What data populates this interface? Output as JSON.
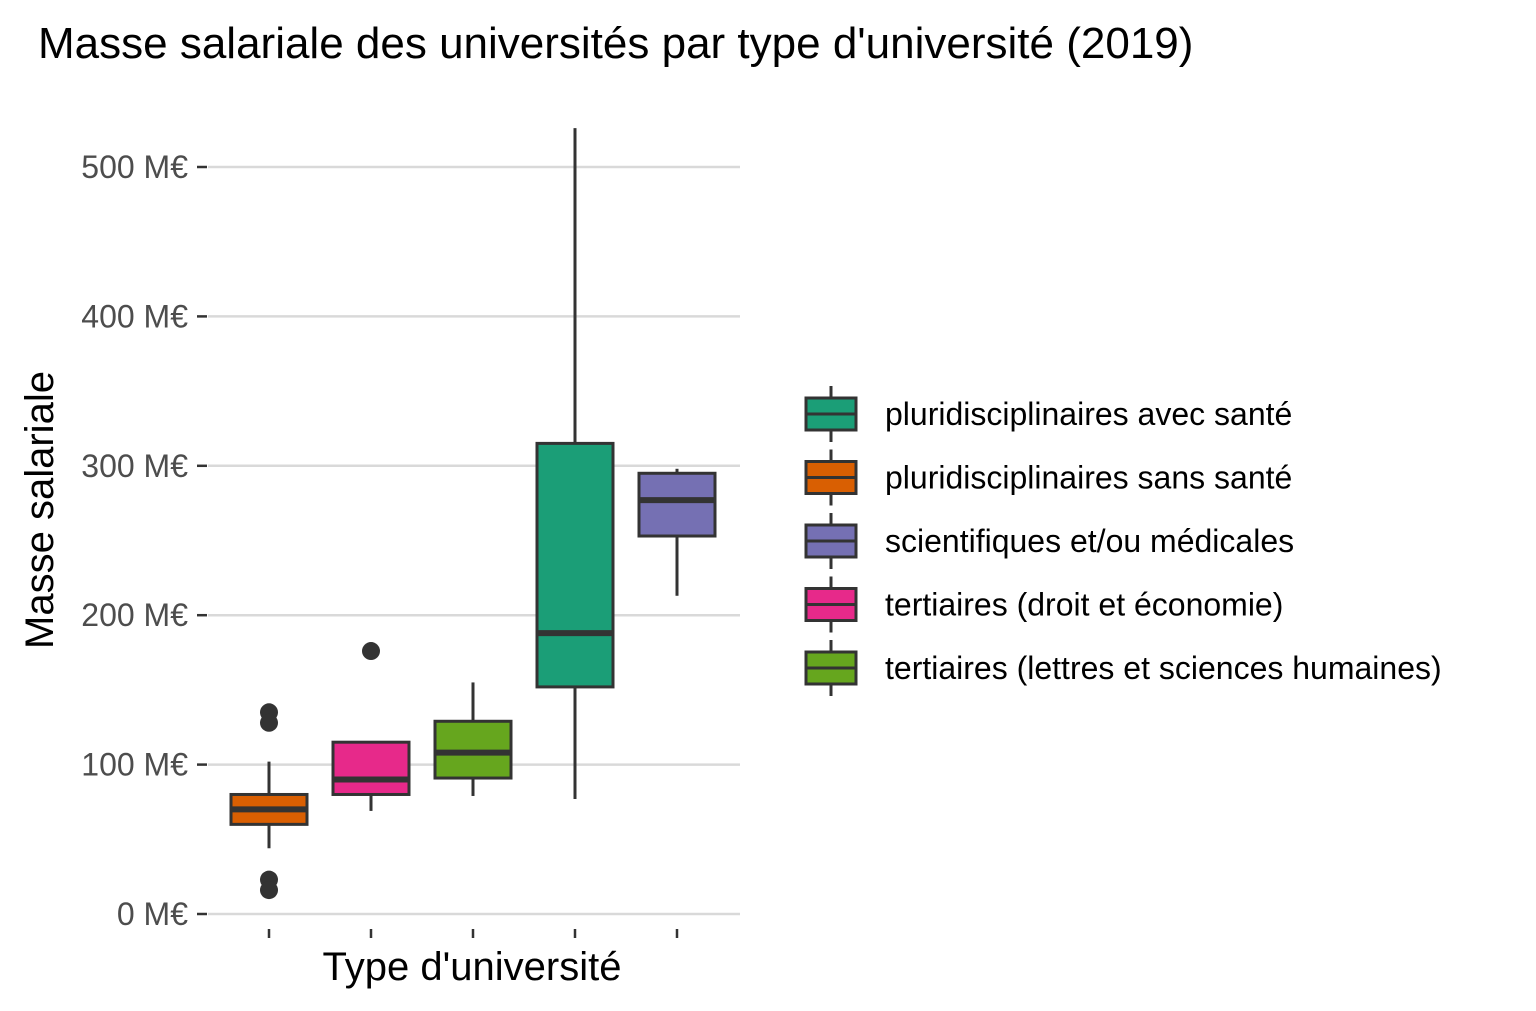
{
  "chart_data": {
    "type": "boxplot",
    "title": "Masse salariale des universités par type d'université (2019)",
    "xlabel": "Type d'université",
    "ylabel": "Masse salariale",
    "ylim": [
      0,
      530
    ],
    "yticks": [
      {
        "value": 0,
        "label": "0 M€"
      },
      {
        "value": 100,
        "label": "100 M€"
      },
      {
        "value": 200,
        "label": "200 M€"
      },
      {
        "value": 300,
        "label": "300 M€"
      },
      {
        "value": 400,
        "label": "400 M€"
      },
      {
        "value": 500,
        "label": "500 M€"
      }
    ],
    "grid": true,
    "legend_position": "right",
    "series": [
      {
        "name": "pluridisciplinaires sans santé",
        "color": "#D95F02",
        "whisker_low": 44,
        "q1": 60,
        "median": 70,
        "q3": 80,
        "whisker_high": 102,
        "outliers": [
          135,
          128,
          23,
          16
        ]
      },
      {
        "name": "tertiaires (droit et économie)",
        "color": "#E7298A",
        "whisker_low": 69,
        "q1": 80,
        "median": 90,
        "q3": 115,
        "whisker_high": 115,
        "outliers": [
          176
        ]
      },
      {
        "name": "tertiaires (lettres et sciences humaines)",
        "color": "#66A61E",
        "whisker_low": 79,
        "q1": 91,
        "median": 108,
        "q3": 129,
        "whisker_high": 155,
        "outliers": []
      },
      {
        "name": "pluridisciplinaires avec santé",
        "color": "#1B9E77",
        "whisker_low": 77,
        "q1": 152,
        "median": 188,
        "q3": 315,
        "whisker_high": 526,
        "outliers": []
      },
      {
        "name": "scientifiques et/ou médicales",
        "color": "#7570B3",
        "whisker_low": 213,
        "q1": 253,
        "median": 277,
        "q3": 295,
        "whisker_high": 298,
        "outliers": []
      }
    ],
    "legend": [
      {
        "label": "pluridisciplinaires avec santé",
        "color": "#1B9E77"
      },
      {
        "label": "pluridisciplinaires sans santé",
        "color": "#D95F02"
      },
      {
        "label": "scientifiques et/ou médicales",
        "color": "#7570B3"
      },
      {
        "label": "tertiaires (droit et économie)",
        "color": "#E7298A"
      },
      {
        "label": "tertiaires (lettres et sciences humaines)",
        "color": "#66A61E"
      }
    ]
  }
}
